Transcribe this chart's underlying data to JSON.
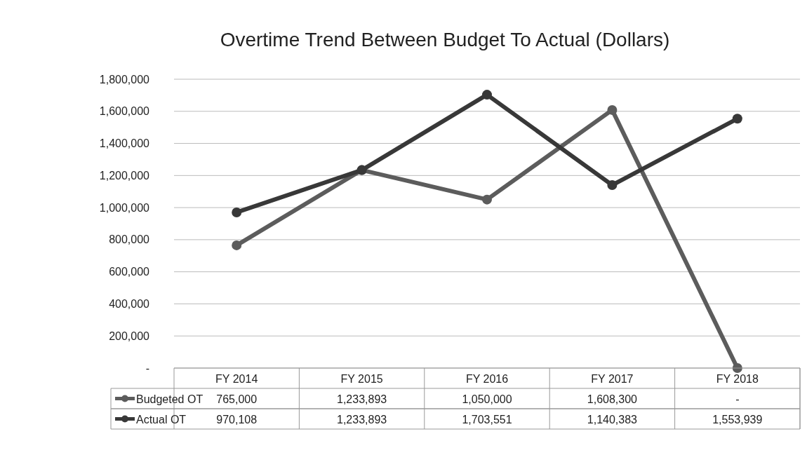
{
  "chart_data": {
    "type": "line",
    "title": "Overtime Trend Between Budget To Actual (Dollars)",
    "categories": [
      "FY 2014",
      "FY 2015",
      "FY 2016",
      "FY 2017",
      "FY 2018"
    ],
    "series": [
      {
        "name": "Budgeted OT",
        "color": "#5c5c5c",
        "values": [
          765000,
          1233893,
          1050000,
          1608300,
          0
        ],
        "value_labels": [
          "765,000",
          "1,233,893",
          "1,050,000",
          "1,608,300",
          "-"
        ]
      },
      {
        "name": "Actual OT",
        "color": "#383838",
        "values": [
          970108,
          1233893,
          1703551,
          1140383,
          1553939
        ],
        "value_labels": [
          "970,108",
          "1,233,893",
          "1,703,551",
          "1,140,383",
          "1,553,939"
        ]
      }
    ],
    "ylim": [
      0,
      1800000
    ],
    "yticks": [
      {
        "value": 0,
        "label": "-"
      },
      {
        "value": 200000,
        "label": "200,000"
      },
      {
        "value": 400000,
        "label": "400,000"
      },
      {
        "value": 600000,
        "label": "600,000"
      },
      {
        "value": 800000,
        "label": "800,000"
      },
      {
        "value": 1000000,
        "label": "1,000,000"
      },
      {
        "value": 1200000,
        "label": "1,200,000"
      },
      {
        "value": 1400000,
        "label": "1,400,000"
      },
      {
        "value": 1600000,
        "label": "1,600,000"
      },
      {
        "value": 1800000,
        "label": "1,800,000"
      }
    ],
    "grid": "y",
    "legend": "bottom",
    "marker": "circle",
    "line_style": "solid"
  }
}
